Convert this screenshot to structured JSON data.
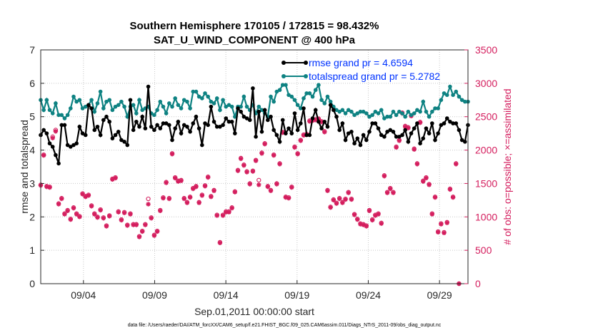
{
  "chart_data": {
    "type": "line",
    "title": "Southern Hemisphere 170105 / 172815 = 98.432%",
    "subtitle": "SAT_U_WIND_COMPONENT @ 400 hPa",
    "xlabel": "Sep.01,2011 00:00:00 start",
    "ylabel": "rmse and totalspread",
    "y2label": "# of obs: o=possible; ×=assimilated",
    "xlim": [
      0,
      30
    ],
    "ylim": [
      0,
      7
    ],
    "y2lim": [
      0,
      3500
    ],
    "xticks": [
      {
        "x": 3,
        "label": "09/04"
      },
      {
        "x": 8,
        "label": "09/09"
      },
      {
        "x": 13,
        "label": "09/14"
      },
      {
        "x": 18,
        "label": "09/19"
      },
      {
        "x": 23,
        "label": "09/24"
      },
      {
        "x": 28,
        "label": "09/29"
      }
    ],
    "yticks": [
      "0",
      "1",
      "2",
      "3",
      "4",
      "5",
      "6",
      "7"
    ],
    "y2ticks": [
      "0",
      "500",
      "1000",
      "1500",
      "2000",
      "2500",
      "3000",
      "3500"
    ],
    "legend": {
      "position": "top-right",
      "entries": [
        "rmse grand pr = 4.6594",
        "totalspread grand pr = 5.2782"
      ]
    },
    "footnote": "data file: /Users/raeder/DAI/ATM_forcXX/CAM6_setup/f.e21.FHIST_BGC.f09_025.CAM6assim.011/Diags_NTrS_2011-09/obs_diag_output.nc",
    "colors": {
      "rmse": "#000000",
      "totalspread": "#0e8282",
      "obs": "#d41e5e",
      "legend_text": "#0033ff"
    },
    "series": [
      {
        "name": "rmse",
        "axis": "left",
        "values": [
          4.45,
          4.6,
          4.5,
          4.2,
          4.1,
          3.85,
          3.6,
          4.75,
          4.75,
          4.15,
          4.1,
          4.15,
          4.2,
          4.7,
          4.5,
          4.45,
          5.35,
          5.25,
          4.6,
          4.7,
          4.45,
          4.9,
          5.0,
          4.85,
          4.35,
          4.45,
          4.55,
          4.3,
          4.25,
          4.15,
          5.5,
          4.6,
          4.85,
          4.7,
          5.0,
          4.65,
          5.9,
          4.7,
          4.6,
          4.75,
          4.65,
          4.8,
          4.8,
          4.75,
          4.3,
          4.65,
          4.85,
          4.5,
          4.75,
          4.7,
          4.55,
          4.8,
          5.0,
          4.65,
          4.15,
          4.8,
          4.75,
          5.3,
          4.85,
          4.7,
          4.7,
          4.75,
          4.95,
          4.85,
          4.85,
          4.5,
          5.25,
          5.15,
          5.0,
          4.95,
          4.9,
          5.85,
          4.4,
          5.15,
          4.55,
          5.2,
          4.9,
          5.0,
          4.6,
          4.45,
          4.25,
          4.9,
          4.5,
          4.65,
          4.5,
          5.1,
          4.6,
          4.8,
          5.25,
          4.45,
          4.45,
          4.95,
          5.2,
          4.85,
          4.65,
          4.85,
          4.7,
          5.35,
          5.2,
          5.0,
          4.6,
          4.8,
          4.3,
          4.5,
          4.55,
          4.2,
          4.35,
          4.15,
          4.45,
          4.3,
          4.55,
          4.8,
          4.8,
          4.65,
          4.45,
          4.4,
          4.55,
          4.6,
          4.55,
          4.4,
          4.4,
          4.45,
          4.6,
          4.25,
          4.5,
          4.65,
          4.8,
          4.2,
          4.35,
          4.65,
          4.5,
          4.8,
          4.3,
          4.5,
          4.75,
          4.8,
          4.95,
          4.85,
          4.8,
          4.8,
          4.6,
          4.3,
          4.25,
          4.75
        ]
      },
      {
        "name": "totalspread",
        "axis": "left",
        "values": [
          5.5,
          5.2,
          5.5,
          5.2,
          5.1,
          5.4,
          5.05,
          5.05,
          4.95,
          5.05,
          5.25,
          5.6,
          5.45,
          5.5,
          5.25,
          5.3,
          5.35,
          5.5,
          5.15,
          5.4,
          5.75,
          5.25,
          5.45,
          5.5,
          5.2,
          5.3,
          5.35,
          5.45,
          5.3,
          5.0,
          5.3,
          5.35,
          5.1,
          5.5,
          5.2,
          5.25,
          5.3,
          5.1,
          5.05,
          5.2,
          5.45,
          5.3,
          5.1,
          5.4,
          5.3,
          5.55,
          5.35,
          5.25,
          5.5,
          5.45,
          5.25,
          5.75,
          5.75,
          5.6,
          5.55,
          5.7,
          5.6,
          5.45,
          5.4,
          5.55,
          5.2,
          5.5,
          5.3,
          5.35,
          5.3,
          5.0,
          5.3,
          5.3,
          5.6,
          5.3,
          5.2,
          5.35,
          5.1,
          5.3,
          5.2,
          5.1,
          5.0,
          5.6,
          5.45,
          5.75,
          5.8,
          5.95,
          5.95,
          5.65,
          5.6,
          5.5,
          5.35,
          5.25,
          5.55,
          5.7,
          5.7,
          5.6,
          5.8,
          5.95,
          5.5,
          5.4,
          5.6,
          5.45,
          5.3,
          5.2,
          5.15,
          5.2,
          5.1,
          5.2,
          5.15,
          5.05,
          5.1,
          5.15,
          5.15,
          5.1,
          5.0,
          5.05,
          5.15,
          5.1,
          5.2,
          4.95,
          5.0,
          5.0,
          5.15,
          5.05,
          5.15,
          5.1,
          5.0,
          5.15,
          5.05,
          5.1,
          5.2,
          5.15,
          5.45,
          5.15,
          5.0,
          5.15,
          5.25,
          5.25,
          5.5,
          5.7,
          5.65,
          5.9,
          5.65,
          5.75,
          5.6,
          5.5,
          5.45,
          5.45
        ]
      },
      {
        "name": "obs_possible",
        "axis": "right",
        "values": [
          1480,
          1930,
          1460,
          1450,
          2200,
          2300,
          1200,
          1280,
          1050,
          1100,
          970,
          1140,
          1050,
          1010,
          1350,
          1310,
          1330,
          1170,
          1050,
          1000,
          1110,
          990,
          870,
          1020,
          1570,
          1590,
          1080,
          960,
          1070,
          880,
          1050,
          890,
          890,
          710,
          790,
          890,
          1270,
          990,
          730,
          790,
          1100,
          1290,
          1520,
          1280,
          1950,
          1590,
          1540,
          1550,
          1280,
          1220,
          1300,
          1430,
          1460,
          1220,
          1330,
          1470,
          1600,
          1310,
          1400,
          1030,
          620,
          1030,
          1080,
          1080,
          1140,
          1380,
          1700,
          1880,
          1780,
          1680,
          1500,
          1690,
          1850,
          1550,
          1960,
          2100,
          1460,
          1400,
          1930,
          1500,
          1800,
          2270,
          1300,
          1290,
          1450,
          2050,
          1950,
          2150,
          2230,
          2240,
          2440,
          2450,
          2460,
          2470,
          2430,
          2280,
          1400,
          1150,
          1260,
          1210,
          1280,
          1220,
          1270,
          1370,
          1270,
          1040,
          970,
          900,
          890,
          870,
          1100,
          960,
          1030,
          1050,
          910,
          1620,
          1370,
          1430,
          1370,
          2050,
          2150,
          2560,
          2360,
          2340,
          2520,
          2020,
          1800,
          2420,
          1540,
          1590,
          1490,
          1050,
          1300,
          780,
          900,
          770,
          920,
          1420,
          1300,
          1800,
          0
        ]
      },
      {
        "name": "obs_assimilated",
        "axis": "right",
        "values": [
          1470,
          1920,
          1450,
          1440,
          2180,
          2280,
          1190,
          1270,
          1040,
          1090,
          960,
          1130,
          1040,
          1000,
          1340,
          1300,
          1320,
          1160,
          1040,
          990,
          1100,
          980,
          860,
          1010,
          1560,
          1580,
          1070,
          950,
          1060,
          870,
          1040,
          880,
          880,
          700,
          780,
          880,
          1190,
          980,
          720,
          780,
          1090,
          1280,
          1510,
          1270,
          1940,
          1580,
          1530,
          1540,
          1270,
          1210,
          1290,
          1420,
          1450,
          1210,
          1320,
          1460,
          1590,
          1300,
          1390,
          1020,
          610,
          1020,
          1070,
          1070,
          1130,
          1370,
          1690,
          1870,
          1770,
          1670,
          1490,
          1680,
          1840,
          1480,
          1950,
          2090,
          1450,
          1390,
          1920,
          1490,
          1790,
          2260,
          1290,
          1280,
          1440,
          2040,
          1940,
          2140,
          2220,
          2230,
          2430,
          2440,
          2450,
          2460,
          2420,
          2270,
          1390,
          1140,
          1250,
          1200,
          1270,
          1210,
          1260,
          1360,
          1260,
          1030,
          960,
          890,
          880,
          860,
          1090,
          950,
          1020,
          1040,
          900,
          1610,
          1360,
          1420,
          1360,
          2040,
          2140,
          2550,
          2350,
          2330,
          2510,
          2010,
          1790,
          2410,
          1530,
          1580,
          1480,
          1040,
          1290,
          770,
          890,
          760,
          910,
          1410,
          1290,
          1790,
          0
        ]
      }
    ]
  }
}
